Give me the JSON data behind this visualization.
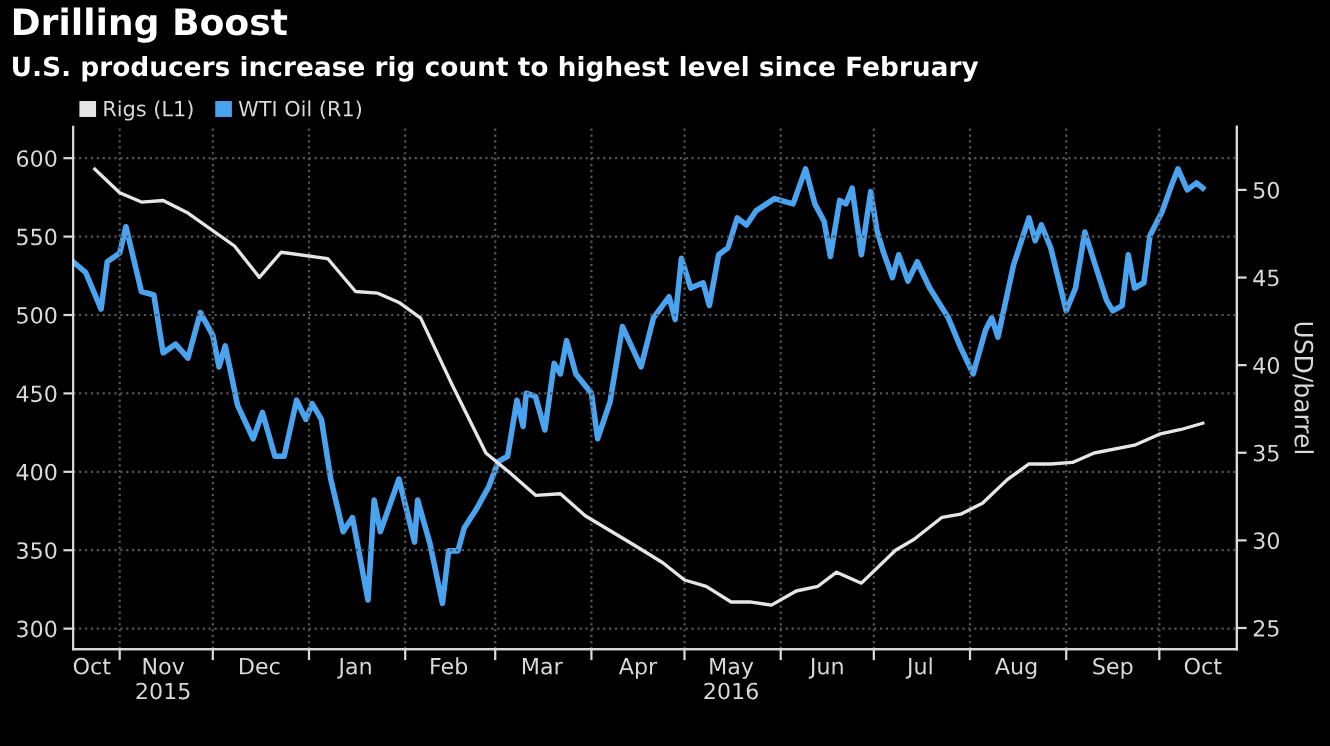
{
  "chart_data": {
    "type": "line",
    "title": "Drilling Boost",
    "subtitle": "U.S. producers increase rig count to highest level since February",
    "y2label": "USD/barrel",
    "xlim": [
      "2015-10-17",
      "2016-10-26"
    ],
    "xticks": [
      {
        "value": "2015-11-01",
        "label": null
      },
      {
        "value": "2015-12-01",
        "label": null
      },
      {
        "value": "2016-01-01",
        "label": null
      },
      {
        "value": "2016-02-01",
        "label": null
      },
      {
        "value": "2016-03-01",
        "label": null
      },
      {
        "value": "2016-04-01",
        "label": null
      },
      {
        "value": "2016-05-01",
        "label": null
      },
      {
        "value": "2016-06-01",
        "label": null
      },
      {
        "value": "2016-07-01",
        "label": null
      },
      {
        "value": "2016-08-01",
        "label": null
      },
      {
        "value": "2016-09-01",
        "label": null
      },
      {
        "value": "2016-10-01",
        "label": null
      },
      {
        "value": "2015-10-23",
        "label": "Oct"
      },
      {
        "value": "2015-11-15",
        "label": "Nov\n2015"
      },
      {
        "value": "2015-12-16",
        "label": "Dec"
      },
      {
        "value": "2016-01-16",
        "label": "Jan"
      },
      {
        "value": "2016-02-15",
        "label": "Feb"
      },
      {
        "value": "2016-03-16",
        "label": "Mar"
      },
      {
        "value": "2016-04-16",
        "label": "Apr"
      },
      {
        "value": "2016-05-16",
        "label": "May\n2016"
      },
      {
        "value": "2016-06-16",
        "label": "Jun"
      },
      {
        "value": "2016-07-16",
        "label": "Jul"
      },
      {
        "value": "2016-08-16",
        "label": "Aug"
      },
      {
        "value": "2016-09-16",
        "label": "Sep"
      },
      {
        "value": "2016-10-15",
        "label": "Oct"
      }
    ],
    "ylim": [
      287,
      620
    ],
    "yticks": [
      300,
      350,
      400,
      450,
      500,
      550,
      600
    ],
    "y2lim": [
      23.8,
      53.6
    ],
    "y2ticks": [
      25,
      30,
      35,
      40,
      45,
      50
    ],
    "grid": true,
    "legend": "top left",
    "line_style": "solid",
    "series": [
      {
        "name": "Rigs (L1)",
        "color": "#e6e6e6",
        "x": [
          "2015-10-24",
          "2015-11-01",
          "2015-11-08",
          "2015-11-15",
          "2015-11-23",
          "2015-12-08",
          "2015-12-16",
          "2015-12-23",
          "2016-01-07",
          "2016-01-16",
          "2016-01-23",
          "2016-01-30",
          "2016-02-06",
          "2016-02-16",
          "2016-02-27",
          "2016-03-06",
          "2016-03-14",
          "2016-03-22",
          "2016-03-30",
          "2016-04-15",
          "2016-04-24",
          "2016-05-01",
          "2016-05-08",
          "2016-05-16",
          "2016-05-22",
          "2016-05-29",
          "2016-06-06",
          "2016-06-13",
          "2016-06-19",
          "2016-06-27",
          "2016-07-08",
          "2016-07-14",
          "2016-07-23",
          "2016-07-29",
          "2016-08-05",
          "2016-08-13",
          "2016-08-20",
          "2016-08-27",
          "2016-09-03",
          "2016-09-10",
          "2016-09-23",
          "2016-10-01",
          "2016-10-08",
          "2016-10-15"
        ],
        "values": [
          593,
          578,
          572,
          573,
          565,
          544,
          524,
          540,
          536,
          515,
          514,
          508,
          498,
          456,
          412,
          399,
          385,
          386,
          372,
          353,
          342,
          331,
          327,
          317,
          317,
          315,
          324,
          327,
          336,
          329,
          350,
          357,
          371,
          373,
          380,
          395,
          405,
          405,
          406,
          412,
          417,
          424,
          427,
          431
        ]
      },
      {
        "name": "WTI Oil (R1)",
        "color": "#4aa3ee",
        "axis": "y2",
        "x": [
          "2015-10-17",
          "2015-10-21",
          "2015-10-26",
          "2015-10-28",
          "2015-11-01",
          "2015-11-03",
          "2015-11-08",
          "2015-11-12",
          "2015-11-15",
          "2015-11-19",
          "2015-11-23",
          "2015-11-27",
          "2015-12-01",
          "2015-12-03",
          "2015-12-05",
          "2015-12-09",
          "2015-12-14",
          "2015-12-17",
          "2015-12-21",
          "2015-12-24",
          "2015-12-28",
          "2015-12-31",
          "2016-01-02",
          "2016-01-05",
          "2016-01-08",
          "2016-01-12",
          "2016-01-15",
          "2016-01-20",
          "2016-01-22",
          "2016-01-24",
          "2016-01-30",
          "2016-02-04",
          "2016-02-05",
          "2016-02-09",
          "2016-02-13",
          "2016-02-15",
          "2016-02-18",
          "2016-02-20",
          "2016-02-24",
          "2016-02-28",
          "2016-03-02",
          "2016-03-05",
          "2016-03-08",
          "2016-03-10",
          "2016-03-11",
          "2016-03-14",
          "2016-03-17",
          "2016-03-20",
          "2016-03-22",
          "2016-03-24",
          "2016-03-27",
          "2016-04-01",
          "2016-04-03",
          "2016-04-07",
          "2016-04-11",
          "2016-04-17",
          "2016-04-21",
          "2016-04-26",
          "2016-04-28",
          "2016-04-30",
          "2016-05-03",
          "2016-05-07",
          "2016-05-09",
          "2016-05-12",
          "2016-05-15",
          "2016-05-18",
          "2016-05-21",
          "2016-05-24",
          "2016-05-30",
          "2016-06-05",
          "2016-06-09",
          "2016-06-12",
          "2016-06-15",
          "2016-06-17",
          "2016-06-20",
          "2016-06-22",
          "2016-06-24",
          "2016-06-27",
          "2016-06-30",
          "2016-07-02",
          "2016-07-04",
          "2016-07-07",
          "2016-07-09",
          "2016-07-12",
          "2016-07-15",
          "2016-07-19",
          "2016-07-25",
          "2016-07-29",
          "2016-08-02",
          "2016-08-06",
          "2016-08-08",
          "2016-08-10",
          "2016-08-15",
          "2016-08-20",
          "2016-08-22",
          "2016-08-24",
          "2016-08-27",
          "2016-09-01",
          "2016-09-04",
          "2016-09-07",
          "2016-09-10",
          "2016-09-14",
          "2016-09-16",
          "2016-09-19",
          "2016-09-21",
          "2016-09-23",
          "2016-09-26",
          "2016-09-28",
          "2016-10-02",
          "2016-10-05",
          "2016-10-07",
          "2016-10-10",
          "2016-10-13",
          "2016-10-15"
        ],
        "values": [
          45.9,
          45.3,
          43.2,
          45.9,
          46.4,
          47.9,
          44.2,
          44.0,
          40.7,
          41.2,
          40.4,
          43.0,
          41.7,
          39.9,
          41.1,
          37.7,
          35.8,
          37.3,
          34.8,
          34.8,
          38.0,
          36.9,
          37.8,
          36.9,
          33.5,
          30.5,
          31.3,
          26.6,
          32.3,
          30.5,
          33.5,
          29.9,
          32.3,
          29.8,
          26.4,
          29.4,
          29.4,
          30.7,
          31.8,
          33.1,
          34.5,
          34.8,
          38.0,
          36.5,
          38.4,
          38.2,
          36.3,
          40.1,
          39.5,
          41.4,
          39.5,
          38.4,
          35.8,
          37.9,
          42.2,
          39.9,
          42.7,
          43.9,
          42.6,
          46.1,
          44.4,
          44.7,
          43.4,
          46.3,
          46.7,
          48.4,
          48.0,
          48.8,
          49.5,
          49.2,
          51.2,
          49.2,
          48.2,
          46.2,
          49.4,
          49.2,
          50.1,
          46.3,
          49.9,
          47.7,
          46.5,
          45.0,
          46.3,
          44.8,
          45.9,
          44.4,
          42.7,
          41.0,
          39.5,
          42.0,
          42.7,
          41.6,
          45.7,
          48.4,
          47.1,
          48.0,
          46.7,
          43.1,
          44.4,
          47.6,
          45.9,
          43.7,
          43.1,
          43.4,
          46.3,
          44.4,
          44.7,
          47.4,
          48.8,
          50.3,
          51.2,
          50.0,
          50.4,
          50.1
        ]
      }
    ]
  }
}
